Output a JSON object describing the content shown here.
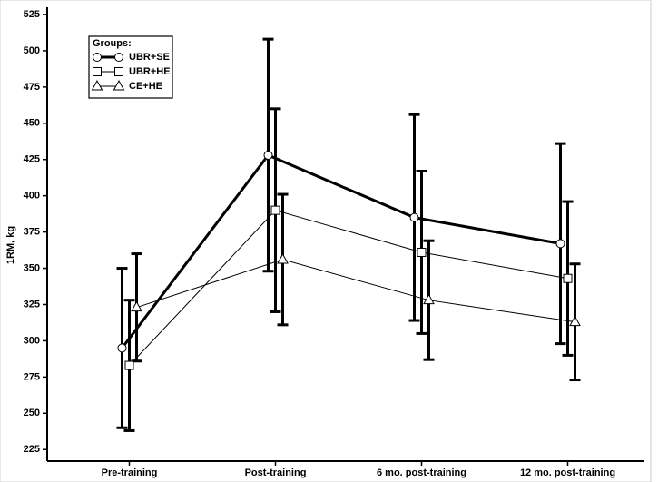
{
  "chart_data": {
    "type": "line",
    "y_label": "1RM, kg",
    "legend_title": "Groups:",
    "legend": "top-left",
    "categories": [
      "Pre-training",
      "Post-training",
      "6 mo. post-training",
      "12 mo. post-training"
    ],
    "series": [
      {
        "name": "UBR+SE",
        "color": "#000000",
        "marker": "circle",
        "line_width": 3,
        "values": [
          295,
          428,
          385,
          367
        ],
        "errors": [
          55,
          80,
          71,
          69
        ]
      },
      {
        "name": "UBR+HE",
        "color": "#000000",
        "marker": "square",
        "line_width": 1,
        "values": [
          283,
          390,
          361,
          343
        ],
        "errors": [
          45,
          70,
          56,
          53
        ]
      },
      {
        "name": "CE+HE",
        "color": "#000000",
        "marker": "triangle",
        "line_width": 1,
        "values": [
          323,
          356,
          328,
          313
        ],
        "errors": [
          37,
          45,
          41,
          40
        ]
      }
    ],
    "ylim": [
      217,
      530
    ],
    "yticks": [
      225,
      250,
      275,
      300,
      325,
      350,
      375,
      400,
      425,
      450,
      475,
      500,
      525
    ]
  }
}
